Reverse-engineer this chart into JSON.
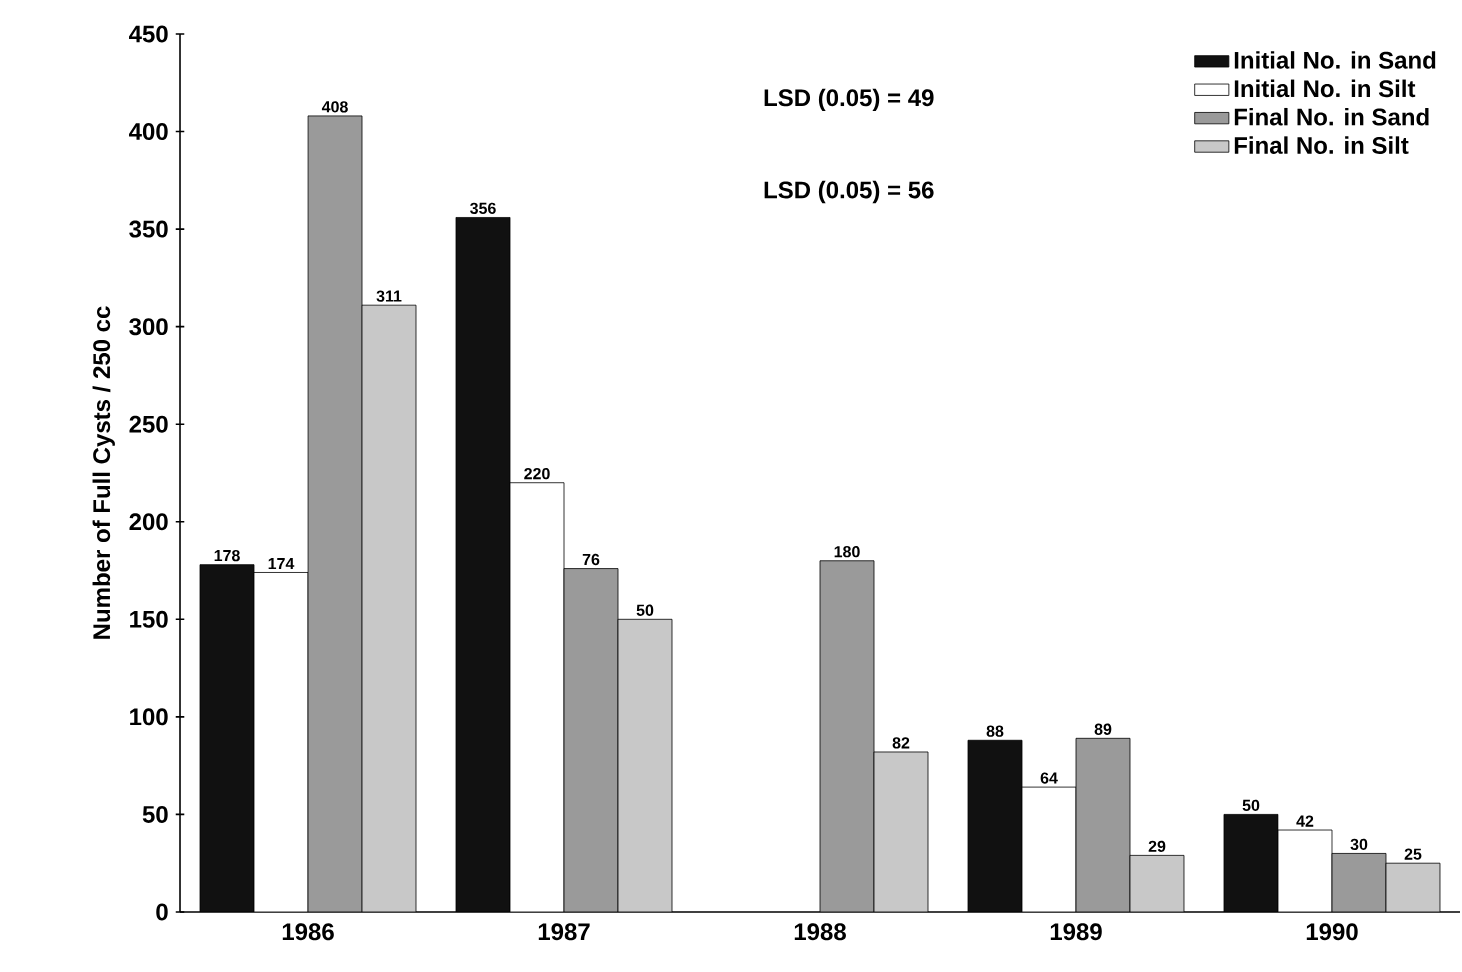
{
  "chart_data": {
    "type": "bar",
    "ylabel": "Number of Full Cysts / 250 cc",
    "categories": [
      "1986",
      "1987",
      "1988",
      "1989",
      "1990"
    ],
    "series": [
      {
        "name": "Initial No. in Sand",
        "color": "#111111",
        "values": [
          178,
          356,
          null,
          88,
          50
        ],
        "value_labels": [
          "178",
          "356",
          null,
          "88",
          "50"
        ]
      },
      {
        "name": "Initial No. in Silt",
        "color": "#ffffff",
        "values": [
          174,
          220,
          null,
          64,
          42
        ],
        "value_labels": [
          "174",
          "220",
          null,
          "64",
          "42"
        ]
      },
      {
        "name": "Final No. in Sand",
        "color": "#9a9a9a",
        "values": [
          408,
          176,
          180,
          89,
          30
        ],
        "value_labels": [
          "408",
          null,
          "180",
          "89",
          "30"
        ]
      },
      {
        "name": "Final No. in Silt",
        "color": "#c8c8c8",
        "values": [
          311,
          150,
          82,
          29,
          25
        ],
        "value_labels": [
          "311",
          null,
          "82",
          "29",
          "25"
        ]
      }
    ],
    "ylim": [
      0,
      450
    ],
    "yticks": [
      0,
      50,
      100,
      150,
      200,
      250,
      300,
      350,
      400,
      450
    ],
    "annotations": [
      "LSD (0.05) = 49",
      "LSD (0.05) = 56",
      {
        "text": "76",
        "y": 176
      },
      {
        "text": "50",
        "y": 150
      }
    ],
    "legend": "top right",
    "grid": false
  }
}
